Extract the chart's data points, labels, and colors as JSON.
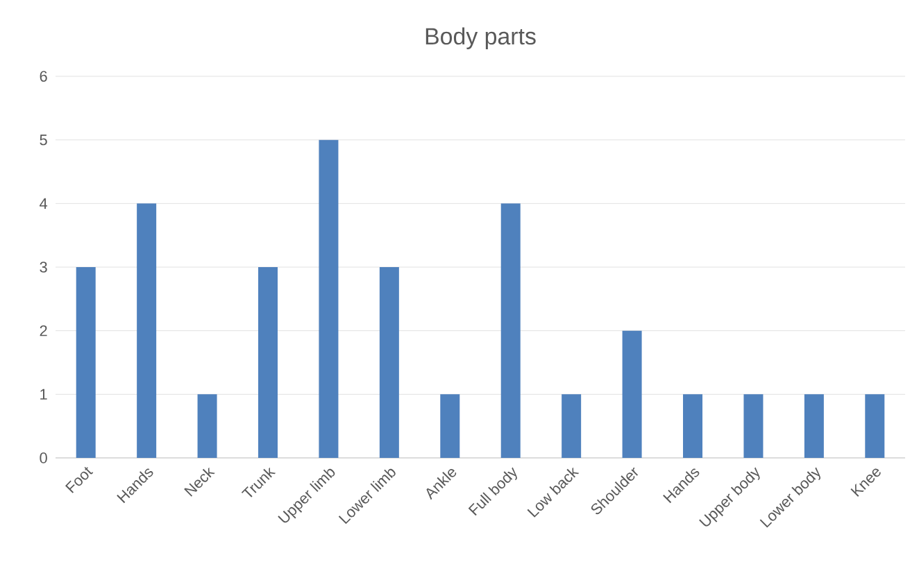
{
  "chart_data": {
    "type": "bar",
    "title": "Body parts",
    "categories": [
      "Foot",
      "Hands",
      "Neck",
      "Trunk",
      "Upper limb",
      "Lower limb",
      "Ankle",
      "Full body",
      "Low back",
      "Shoulder",
      "Hands",
      "Upper body",
      "Lower body",
      "Knee"
    ],
    "values": [
      3,
      4,
      1,
      3,
      5,
      3,
      1,
      4,
      1,
      2,
      1,
      1,
      1,
      1
    ],
    "color": "#4f81bd",
    "ylim": [
      0,
      6
    ],
    "yticks": [
      0,
      1,
      2,
      3,
      4,
      5,
      6
    ],
    "grid": "y"
  }
}
